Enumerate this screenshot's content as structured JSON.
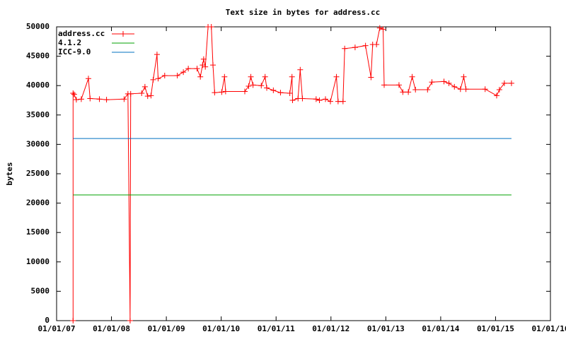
{
  "chart_data": {
    "type": "line",
    "title": "Text size in bytes for address.cc",
    "y_label": "bytes",
    "xlim": [
      2007,
      2016
    ],
    "xticks": [
      {
        "value": 2007,
        "label": "01/01/07"
      },
      {
        "value": 2008,
        "label": "01/01/08"
      },
      {
        "value": 2009,
        "label": "01/01/09"
      },
      {
        "value": 2010,
        "label": "01/01/10"
      },
      {
        "value": 2011,
        "label": "01/01/11"
      },
      {
        "value": 2012,
        "label": "01/01/12"
      },
      {
        "value": 2013,
        "label": "01/01/13"
      },
      {
        "value": 2014,
        "label": "01/01/14"
      },
      {
        "value": 2015,
        "label": "01/01/15"
      },
      {
        "value": 2016,
        "label": "01/01/16"
      }
    ],
    "ylim": [
      0,
      50000
    ],
    "yticks": [
      0,
      5000,
      10000,
      15000,
      20000,
      25000,
      30000,
      35000,
      40000,
      45000,
      50000
    ],
    "legend": "top-left",
    "series": [
      {
        "name": "address.cc",
        "color": "#ff0000",
        "markers": true,
        "x": [
          2007.3,
          2007.3,
          2007.32,
          2007.36,
          2007.45,
          2007.58,
          2007.61,
          2007.78,
          2007.91,
          2008.23,
          2008.3,
          2008.34,
          2008.35,
          2008.55,
          2008.61,
          2008.66,
          2008.72,
          2008.76,
          2008.83,
          2008.85,
          2008.97,
          2009.2,
          2009.31,
          2009.4,
          2009.56,
          2009.62,
          2009.66,
          2009.68,
          2009.71,
          2009.76,
          2009.82,
          2009.85,
          2009.88,
          2010.01,
          2010.06,
          2010.08,
          2010.43,
          2010.5,
          2010.54,
          2010.58,
          2010.73,
          2010.8,
          2010.83,
          2010.95,
          2011.08,
          2011.25,
          2011.29,
          2011.3,
          2011.4,
          2011.44,
          2011.48,
          2011.73,
          2011.79,
          2011.9,
          2011.99,
          2012.1,
          2012.13,
          2012.22,
          2012.25,
          2012.44,
          2012.63,
          2012.73,
          2012.76,
          2012.83,
          2012.89,
          2012.95,
          2012.97,
          2013.24,
          2013.31,
          2013.41,
          2013.48,
          2013.54,
          2013.76,
          2013.84,
          2014.06,
          2014.15,
          2014.25,
          2014.36,
          2014.42,
          2014.46,
          2014.81,
          2015.02,
          2015.07,
          2015.16,
          2015.29
        ],
        "values": [
          0,
          38700,
          38500,
          37600,
          37700,
          41200,
          37800,
          37700,
          37600,
          37700,
          38600,
          0,
          38600,
          38700,
          39800,
          38200,
          38300,
          41000,
          45300,
          41200,
          41700,
          41700,
          42300,
          42900,
          42900,
          41500,
          43500,
          44500,
          43200,
          50000,
          50000,
          43500,
          38800,
          38900,
          41500,
          39000,
          39000,
          39900,
          41500,
          40100,
          40000,
          41500,
          39600,
          39200,
          38800,
          38700,
          41500,
          37500,
          37800,
          42700,
          37800,
          37700,
          37500,
          37700,
          37300,
          41500,
          37300,
          37300,
          46300,
          46500,
          46800,
          41400,
          47000,
          47000,
          49800,
          49600,
          40100,
          40100,
          38900,
          38900,
          41500,
          39300,
          39300,
          40600,
          40700,
          40400,
          39800,
          39400,
          41500,
          39400,
          39400,
          38300,
          39300,
          40400,
          40400
        ]
      },
      {
        "name": "4.1.2",
        "color": "#00a000",
        "markers": false,
        "x": [
          2007.3,
          2015.29
        ],
        "values": [
          21400,
          21400
        ]
      },
      {
        "name": "ICC-9.0",
        "color": "#0070c0",
        "markers": false,
        "x": [
          2007.3,
          2015.29
        ],
        "values": [
          31000,
          31000
        ]
      }
    ]
  }
}
